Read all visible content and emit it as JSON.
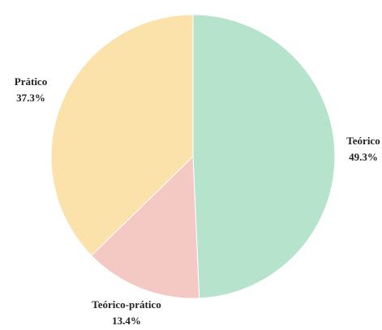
{
  "chart_data": {
    "type": "pie",
    "title": "",
    "start": "top",
    "direction": "clockwise",
    "slices": [
      {
        "label": "Teórico",
        "value": 49.3,
        "value_label": "49.3%",
        "color": "#b5e3cc"
      },
      {
        "label": "Teórico-prático",
        "value": 13.4,
        "value_label": "13.4%",
        "color": "#f4c9c4"
      },
      {
        "label": "Prático",
        "value": 37.3,
        "value_label": "37.3%",
        "color": "#fbe1aa"
      }
    ]
  }
}
